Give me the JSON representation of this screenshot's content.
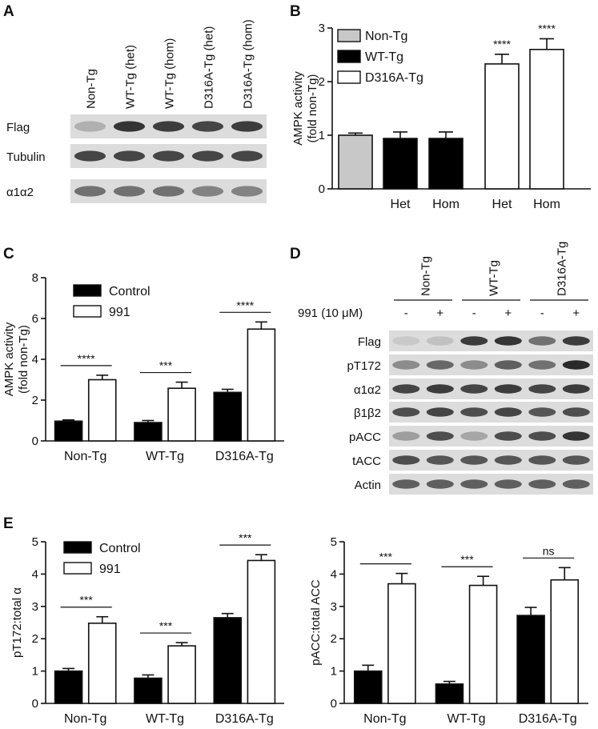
{
  "figure": {
    "panel_labels": [
      "A",
      "B",
      "C",
      "D",
      "E"
    ]
  },
  "colors": {
    "black_bar": "#000000",
    "white_bar": "#ffffff",
    "grey_bar": "#c8c8c8",
    "blot_bg": "#dcdcdc",
    "band": "#2a2a2a"
  },
  "panel_a": {
    "lanes": [
      "Non-Tg",
      "WT-Tg (het)",
      "WT-Tg (hom)",
      "D316A-Tg (het)",
      "D316A-Tg (hom)"
    ],
    "rows": [
      {
        "label": "Flag",
        "intensity": [
          0.25,
          0.95,
          0.9,
          0.85,
          0.9
        ]
      },
      {
        "label": "Tubulin",
        "intensity": [
          0.85,
          0.85,
          0.85,
          0.85,
          0.85
        ]
      },
      {
        "label": "α1α2",
        "intensity": [
          0.6,
          0.6,
          0.6,
          0.5,
          0.5
        ]
      }
    ]
  },
  "panel_d": {
    "groups": [
      "Non-Tg",
      "WT-Tg",
      "D316A-Tg"
    ],
    "treatment_label": "991 (10 μM)",
    "treatment_signs": [
      "-",
      "+",
      "-",
      "+",
      "-",
      "+"
    ],
    "rows": [
      {
        "label": "Flag",
        "intensity": [
          0.1,
          0.15,
          0.9,
          0.95,
          0.6,
          0.9
        ]
      },
      {
        "label": "pT172",
        "intensity": [
          0.45,
          0.65,
          0.45,
          0.7,
          0.6,
          1.0
        ]
      },
      {
        "label": "α1α2",
        "intensity": [
          0.85,
          0.9,
          0.85,
          0.9,
          0.85,
          0.9
        ]
      },
      {
        "label": "β1β2",
        "intensity": [
          0.8,
          0.85,
          0.8,
          0.85,
          0.75,
          0.8
        ]
      },
      {
        "label": "pACC",
        "intensity": [
          0.35,
          0.8,
          0.3,
          0.8,
          0.8,
          0.95
        ]
      },
      {
        "label": "tACC",
        "intensity": [
          0.8,
          0.75,
          0.75,
          0.75,
          0.75,
          0.75
        ]
      },
      {
        "label": "Actin",
        "intensity": [
          0.7,
          0.7,
          0.7,
          0.7,
          0.7,
          0.7
        ]
      }
    ]
  },
  "chart_data": [
    {
      "id": "B",
      "type": "bar",
      "ylabel_lines": [
        "AMPK activity",
        "(fold non-Tg)"
      ],
      "ylim": [
        0,
        3
      ],
      "yticks": [
        0,
        1,
        2,
        3
      ],
      "categories": [
        "",
        "Het",
        "Hom",
        "Het",
        "Hom"
      ],
      "values": [
        1.0,
        0.94,
        0.94,
        2.33,
        2.6
      ],
      "errors": [
        0.04,
        0.12,
        0.12,
        0.18,
        0.2
      ],
      "bar_groups": [
        "Non-Tg",
        "WT-Tg",
        "WT-Tg",
        "D316A-Tg",
        "D316A-Tg"
      ],
      "legend": [
        {
          "name": "Non-Tg",
          "color": "#c8c8c8"
        },
        {
          "name": "WT-Tg",
          "color": "#000000"
        },
        {
          "name": "D316A-Tg",
          "color": "#ffffff"
        }
      ],
      "annotations": [
        "",
        "",
        "",
        "****",
        "****"
      ]
    },
    {
      "id": "C",
      "type": "bar",
      "ylabel_lines": [
        "AMPK activity",
        "(fold non-Tg)"
      ],
      "ylim": [
        0,
        8
      ],
      "yticks": [
        0,
        2,
        4,
        6,
        8
      ],
      "categories": [
        "Non-Tg",
        "WT-Tg",
        "D316A-Tg"
      ],
      "series": [
        {
          "name": "Control",
          "values": [
            0.97,
            0.9,
            2.38
          ],
          "errors": [
            0.06,
            0.1,
            0.15
          ]
        },
        {
          "name": "991",
          "values": [
            3.0,
            2.58,
            5.48
          ],
          "errors": [
            0.22,
            0.3,
            0.35
          ]
        }
      ],
      "annotations": [
        "****",
        "***",
        "****"
      ]
    },
    {
      "id": "E1",
      "type": "bar",
      "ylabel": "pT172:total α",
      "ylim": [
        0,
        5
      ],
      "yticks": [
        0,
        1,
        2,
        3,
        4,
        5
      ],
      "categories": [
        "Non-Tg",
        "WT-Tg",
        "D316A-Tg"
      ],
      "series": [
        {
          "name": "Control",
          "values": [
            1.0,
            0.78,
            2.65
          ],
          "errors": [
            0.08,
            0.1,
            0.13
          ]
        },
        {
          "name": "991",
          "values": [
            2.48,
            1.78,
            4.42
          ],
          "errors": [
            0.2,
            0.1,
            0.18
          ]
        }
      ],
      "annotations": [
        "***",
        "***",
        "***"
      ]
    },
    {
      "id": "E2",
      "type": "bar",
      "ylabel": "pACC:total ACC",
      "ylim": [
        0,
        5
      ],
      "yticks": [
        0,
        1,
        2,
        3,
        4,
        5
      ],
      "categories": [
        "Non-Tg",
        "WT-Tg",
        "D316A-Tg"
      ],
      "series": [
        {
          "name": "Control",
          "values": [
            1.0,
            0.6,
            2.72
          ],
          "errors": [
            0.18,
            0.08,
            0.25
          ]
        },
        {
          "name": "991",
          "values": [
            3.7,
            3.65,
            3.82
          ],
          "errors": [
            0.32,
            0.28,
            0.38
          ]
        }
      ],
      "annotations": [
        "***",
        "***",
        "ns"
      ]
    }
  ]
}
